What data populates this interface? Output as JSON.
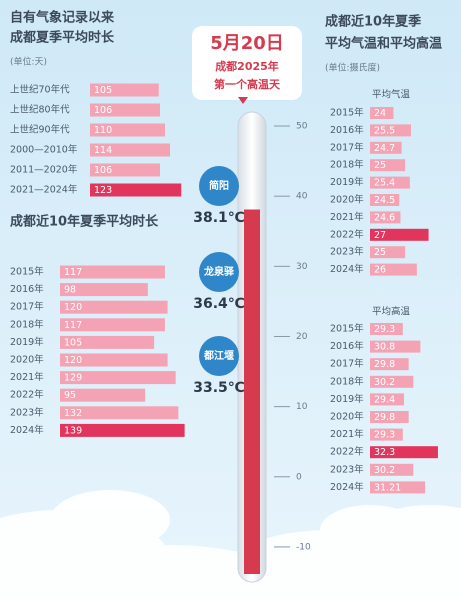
{
  "chart_data": [
    {
      "type": "bar",
      "title": [
        "自有气象记录以来",
        "成都夏季平均时长"
      ],
      "unit": "(单位:天)",
      "categories": [
        "上世纪70年代",
        "上世纪80年代",
        "上世纪90年代",
        "2000—2010年",
        "2011—2020年",
        "2021—2024年"
      ],
      "values": [
        105,
        106,
        110,
        114,
        106,
        123
      ],
      "colors": [
        "#f3a3b3",
        "#f3a3b3",
        "#f3a3b3",
        "#f3a3b3",
        "#f3a3b3",
        "#e2355e"
      ],
      "xlim": [
        50,
        130
      ]
    },
    {
      "type": "bar",
      "title": [
        "成都近10年夏季平均时长"
      ],
      "categories": [
        "2015年",
        "2016年",
        "2017年",
        "2018年",
        "2019年",
        "2020年",
        "2021年",
        "2022年",
        "2023年",
        "2024年"
      ],
      "values": [
        117,
        98,
        120,
        117,
        105,
        120,
        129,
        95,
        132,
        139
      ],
      "colors": [
        "#f3a3b3",
        "#f3a3b3",
        "#f3a3b3",
        "#f3a3b3",
        "#f3a3b3",
        "#f3a3b3",
        "#f3a3b3",
        "#f3a3b3",
        "#f3a3b3",
        "#e2355e"
      ],
      "xlim": [
        0,
        145
      ]
    },
    {
      "type": "bar",
      "title": [
        "成都近10年夏季",
        "平均气温和平均高温"
      ],
      "unit": "(单位:摄氏度)",
      "subtitle": "平均气温",
      "categories": [
        "2015年",
        "2016年",
        "2017年",
        "2018年",
        "2019年",
        "2020年",
        "2021年",
        "2022年",
        "2023年",
        "2024年"
      ],
      "values": [
        24,
        25.5,
        24.7,
        25,
        25.4,
        24.5,
        24.6,
        27,
        25,
        26
      ],
      "colors": [
        "#f3a3b3",
        "#f3a3b3",
        "#f3a3b3",
        "#f3a3b3",
        "#f3a3b3",
        "#f3a3b3",
        "#f3a3b3",
        "#e2355e",
        "#f3a3b3",
        "#f3a3b3"
      ],
      "xlim": [
        22,
        29
      ]
    },
    {
      "type": "bar",
      "subtitle": "平均高温",
      "categories": [
        "2015年",
        "2016年",
        "2017年",
        "2018年",
        "2019年",
        "2020年",
        "2021年",
        "2022年",
        "2023年",
        "2024年"
      ],
      "values": [
        29.3,
        30.8,
        29.8,
        30.2,
        29.4,
        29.8,
        29.3,
        32.3,
        30.2,
        31.21
      ],
      "colors": [
        "#f3a3b3",
        "#f3a3b3",
        "#f3a3b3",
        "#f3a3b3",
        "#f3a3b3",
        "#f3a3b3",
        "#f3a3b3",
        "#e2355e",
        "#f3a3b3",
        "#f3a3b3"
      ],
      "xlim": [
        26.5,
        33.5
      ]
    },
    {
      "type": "thermometer",
      "title": [
        "5月20日",
        "成都2025年",
        "第一个高温天"
      ],
      "categories": [
        "简阳",
        "龙泉驿",
        "都江堰"
      ],
      "values": [
        38.1,
        36.4,
        33.5
      ],
      "value_labels": [
        "38.1℃",
        "36.4℃",
        "33.5℃"
      ],
      "ylim": [
        -15,
        52
      ],
      "yticks": [
        50,
        40,
        30,
        20,
        10,
        0,
        -10
      ],
      "color": "#d63a4e"
    }
  ]
}
